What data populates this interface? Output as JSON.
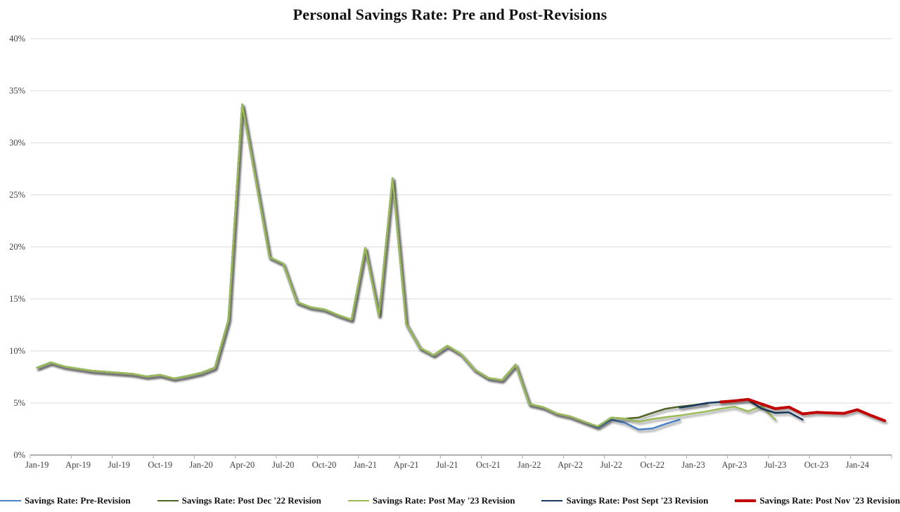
{
  "title": "Personal Savings Rate: Pre and Post-Revisions",
  "chart_data": {
    "type": "line",
    "title": "Personal Savings Rate: Pre and Post-Revisions",
    "xlabel": "",
    "ylabel": "",
    "ylim": [
      0,
      40
    ],
    "y_ticks": [
      "0%",
      "5%",
      "10%",
      "15%",
      "20%",
      "25%",
      "30%",
      "35%",
      "40%"
    ],
    "x_ticks": [
      "Jan-19",
      "Apr-19",
      "Jul-19",
      "Oct-19",
      "Jan-20",
      "Apr-20",
      "Jul-20",
      "Oct-20",
      "Jan-21",
      "Apr-21",
      "Jul-21",
      "Oct-21",
      "Jan-22",
      "Apr-22",
      "Jul-22",
      "Oct-22",
      "Jan-23",
      "Apr-23",
      "Jul-23",
      "Oct-23",
      "Jan-24"
    ],
    "x_tick_interval_months": 3,
    "x_start": "Jan-19",
    "x_end": "Mar-24",
    "grid": "horizontal",
    "legend_position": "bottom",
    "gridline_color": "#d9d9d9",
    "axis_color": "#808080",
    "tick_label_color": "#404040",
    "series": [
      {
        "name": "Savings Rate: Pre-Revision",
        "color": "#4a80c4",
        "line_width": 2.5,
        "start_month_index": 0,
        "values_pct": [
          8.4,
          8.9,
          8.5,
          8.3,
          8.1,
          8.0,
          7.9,
          7.8,
          7.55,
          7.7,
          7.35,
          7.6,
          7.9,
          8.4,
          13.0,
          33.7,
          26.4,
          19.0,
          18.4,
          14.7,
          14.2,
          14.0,
          13.45,
          13.0,
          19.9,
          13.4,
          26.6,
          12.6,
          10.3,
          9.6,
          10.5,
          9.7,
          8.2,
          7.4,
          7.2,
          8.7,
          4.9,
          4.6,
          4.0,
          3.7,
          3.2,
          2.65,
          3.4,
          3.1,
          2.45,
          2.55,
          3.0,
          3.4
        ]
      },
      {
        "name": "Savings Rate: Post Dec '22 Revision",
        "color": "#4f6228",
        "line_width": 2.5,
        "start_month_index": 0,
        "values_pct": [
          8.4,
          8.9,
          8.5,
          8.3,
          8.1,
          8.0,
          7.9,
          7.8,
          7.55,
          7.7,
          7.35,
          7.6,
          7.9,
          8.4,
          13.0,
          33.7,
          26.4,
          19.0,
          18.4,
          14.7,
          14.2,
          14.0,
          13.45,
          13.0,
          19.9,
          13.4,
          26.6,
          12.6,
          10.3,
          9.6,
          10.5,
          9.7,
          8.2,
          7.4,
          7.2,
          8.7,
          4.9,
          4.6,
          4.0,
          3.7,
          3.2,
          2.75,
          3.6,
          3.5,
          3.6,
          4.05,
          4.45,
          4.65,
          4.8,
          4.95
        ]
      },
      {
        "name": "Savings Rate: Post May '23 Revision",
        "color": "#9bbb59",
        "line_width": 2.5,
        "start_month_index": 0,
        "values_pct": [
          8.4,
          8.9,
          8.5,
          8.3,
          8.1,
          8.0,
          7.9,
          7.8,
          7.55,
          7.7,
          7.35,
          7.6,
          7.9,
          8.4,
          13.0,
          33.7,
          26.4,
          19.0,
          18.4,
          14.7,
          14.2,
          14.0,
          13.45,
          13.0,
          19.9,
          13.4,
          26.6,
          12.6,
          10.3,
          9.6,
          10.5,
          9.7,
          8.2,
          7.4,
          7.2,
          8.7,
          4.9,
          4.6,
          4.0,
          3.7,
          3.2,
          2.75,
          3.6,
          3.5,
          3.2,
          3.45,
          3.65,
          3.8,
          4.0,
          4.2,
          4.45,
          4.65,
          4.2,
          4.7,
          3.4
        ]
      },
      {
        "name": "Savings Rate: Post Sept '23 Revision",
        "color": "#17375e",
        "line_width": 2.5,
        "start_month_index": 47,
        "values_pct": [
          4.55,
          4.75,
          5.0,
          5.1,
          5.2,
          5.3,
          4.45,
          4.05,
          4.1,
          3.4
        ]
      },
      {
        "name": "Savings Rate: Post Nov '23 Revision",
        "color": "#c00000",
        "line_width": 4,
        "start_month_index": 50,
        "values_pct": [
          5.1,
          5.2,
          5.35,
          4.9,
          4.45,
          4.6,
          3.95,
          4.1,
          4.05,
          4.0,
          4.35,
          3.8,
          3.3
        ]
      }
    ]
  }
}
